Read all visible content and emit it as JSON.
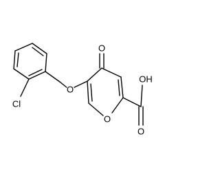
{
  "atoms": [
    {
      "label": "Cl"
    },
    {
      "label": "O"
    },
    {
      "label": "O"
    },
    {
      "label": "O"
    },
    {
      "label": "OH"
    },
    {
      "label": "O"
    }
  ]
}
